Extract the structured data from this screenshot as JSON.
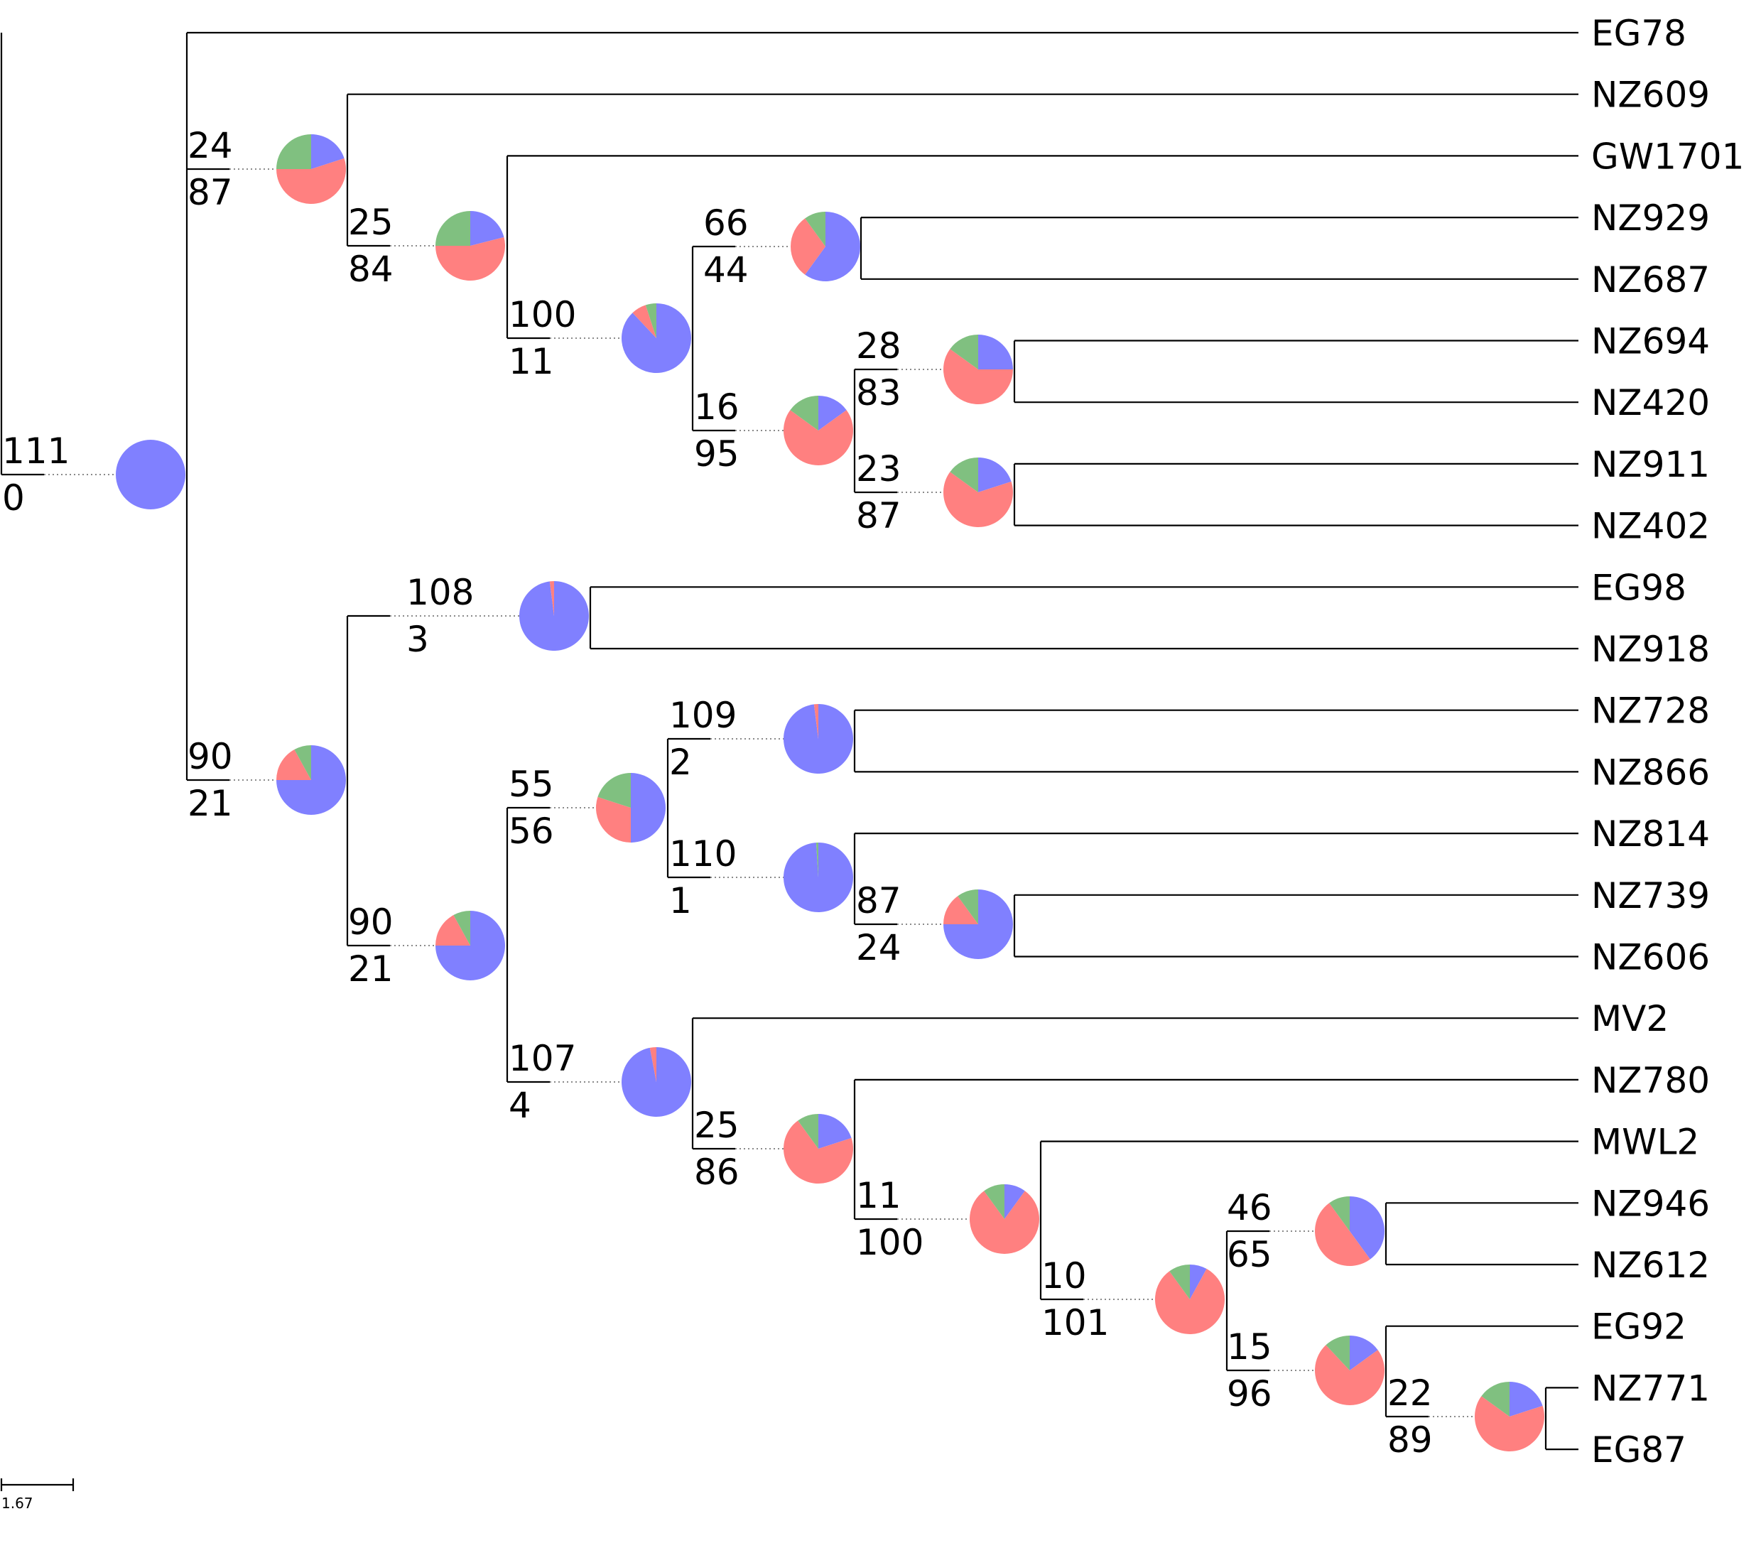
{
  "palette": {
    "blue": "#8080ff",
    "red": "#ff8080",
    "green": "#80c080"
  },
  "scale_bar": {
    "label": "1.67"
  },
  "leaves": [
    "EG78",
    "NZ609",
    "GW1701",
    "NZ929",
    "NZ687",
    "NZ694",
    "NZ420",
    "NZ911",
    "NZ402",
    "EG98",
    "NZ918",
    "NZ728",
    "NZ866",
    "NZ814",
    "NZ739",
    "NZ606",
    "MV2",
    "NZ780",
    "MWL2",
    "NZ946",
    "NZ612",
    "EG92",
    "NZ771",
    "EG87"
  ],
  "nodes": {
    "root": {
      "top": "111",
      "bottom": "0",
      "pie": {
        "blue": 1.0,
        "red": 0.0,
        "green": 0.0
      }
    },
    "n1": {
      "top": "24",
      "bottom": "87",
      "pie": {
        "blue": 0.2,
        "red": 0.55,
        "green": 0.25
      }
    },
    "n2": {
      "top": "25",
      "bottom": "84",
      "pie": {
        "blue": 0.21,
        "red": 0.54,
        "green": 0.25
      }
    },
    "n3": {
      "top": "100",
      "bottom": "11",
      "pie": {
        "blue": 0.88,
        "red": 0.07,
        "green": 0.05
      }
    },
    "n4": {
      "top": "66",
      "bottom": "44",
      "pie": {
        "blue": 0.6,
        "red": 0.3,
        "green": 0.1
      }
    },
    "n5": {
      "top": "16",
      "bottom": "95",
      "pie": {
        "blue": 0.15,
        "red": 0.7,
        "green": 0.15
      }
    },
    "n6": {
      "top": "28",
      "bottom": "83",
      "pie": {
        "blue": 0.25,
        "red": 0.6,
        "green": 0.15
      }
    },
    "n7": {
      "top": "23",
      "bottom": "87",
      "pie": {
        "blue": 0.2,
        "red": 0.65,
        "green": 0.15
      }
    },
    "n8": {
      "top": "90",
      "bottom": "21",
      "pie": {
        "blue": 0.75,
        "red": 0.17,
        "green": 0.08
      }
    },
    "n9": {
      "top": "108",
      "bottom": "3",
      "pie": {
        "blue": 0.98,
        "red": 0.02,
        "green": 0.0
      }
    },
    "n10": {
      "top": "90",
      "bottom": "21",
      "pie": {
        "blue": 0.75,
        "red": 0.17,
        "green": 0.08
      }
    },
    "n11": {
      "top": "55",
      "bottom": "56",
      "pie": {
        "blue": 0.5,
        "red": 0.3,
        "green": 0.2
      }
    },
    "n12": {
      "top": "109",
      "bottom": "2",
      "pie": {
        "blue": 0.98,
        "red": 0.02,
        "green": 0.0
      }
    },
    "n13": {
      "top": "110",
      "bottom": "1",
      "pie": {
        "blue": 0.99,
        "red": 0.0,
        "green": 0.01
      }
    },
    "n14": {
      "top": "87",
      "bottom": "24",
      "pie": {
        "blue": 0.75,
        "red": 0.15,
        "green": 0.1
      }
    },
    "n15": {
      "top": "107",
      "bottom": "4",
      "pie": {
        "blue": 0.97,
        "red": 0.03,
        "green": 0.0
      }
    },
    "n16": {
      "top": "25",
      "bottom": "86",
      "pie": {
        "blue": 0.2,
        "red": 0.7,
        "green": 0.1
      }
    },
    "n17": {
      "top": "11",
      "bottom": "100",
      "pie": {
        "blue": 0.1,
        "red": 0.8,
        "green": 0.1
      }
    },
    "n18": {
      "top": "10",
      "bottom": "101",
      "pie": {
        "blue": 0.08,
        "red": 0.82,
        "green": 0.1
      }
    },
    "n19": {
      "top": "46",
      "bottom": "65",
      "pie": {
        "blue": 0.4,
        "red": 0.5,
        "green": 0.1
      }
    },
    "n20": {
      "top": "15",
      "bottom": "96",
      "pie": {
        "blue": 0.15,
        "red": 0.73,
        "green": 0.12
      }
    },
    "n21": {
      "top": "22",
      "bottom": "89",
      "pie": {
        "blue": 0.2,
        "red": 0.65,
        "green": 0.15
      }
    }
  }
}
